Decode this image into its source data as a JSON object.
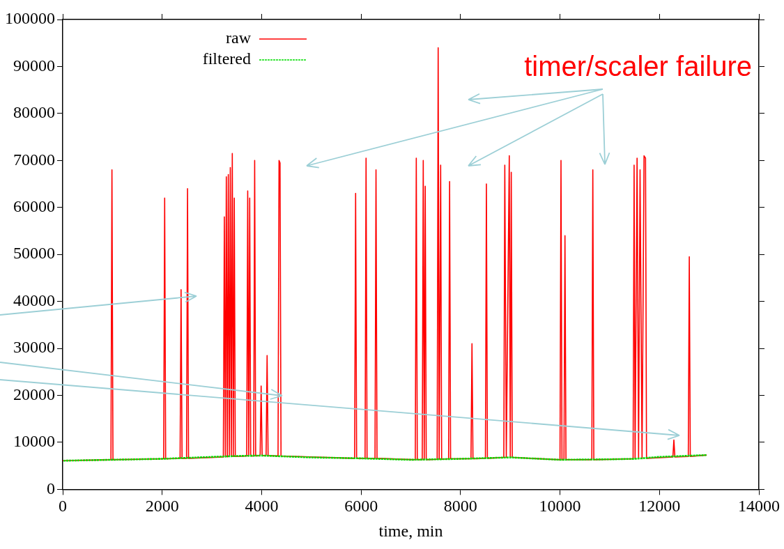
{
  "chart_data": {
    "type": "line",
    "xlabel": "time, min",
    "annotations": [
      "timer/scaler failure"
    ],
    "xlim": [
      0,
      14000
    ],
    "xticks": [
      0,
      2000,
      4000,
      6000,
      8000,
      10000,
      12000,
      14000
    ],
    "ylim": [
      0,
      100000
    ],
    "yticks": [
      0,
      10000,
      20000,
      30000,
      40000,
      50000,
      60000,
      70000,
      80000,
      90000,
      100000
    ],
    "grid": false,
    "legend": "top left",
    "marker": "none",
    "series": [
      {
        "name": "raw",
        "color": "#ff0000",
        "line_style": "solid",
        "x": [
          0,
          970,
          990,
          1010,
          2030,
          2050,
          2070,
          2360,
          2380,
          2400,
          2490,
          2510,
          2530,
          3230,
          3250,
          3270,
          3290,
          3310,
          3330,
          3350,
          3370,
          3390,
          3410,
          3430,
          3450,
          3470,
          3700,
          3720,
          3740,
          3760,
          3780,
          3800,
          3840,
          3860,
          3880,
          3970,
          3990,
          4010,
          4090,
          4110,
          4130,
          4330,
          4350,
          4370,
          4390,
          5870,
          5890,
          5910,
          6080,
          6100,
          6120,
          6280,
          6300,
          6320,
          7090,
          7110,
          7130,
          7230,
          7250,
          7270,
          7290,
          7310,
          7530,
          7550,
          7570,
          7600,
          7620,
          7760,
          7780,
          7800,
          8210,
          8230,
          8250,
          8500,
          8520,
          8540,
          8870,
          8890,
          8920,
          8980,
          9000,
          9020,
          9040,
          10000,
          10020,
          10040,
          10080,
          10100,
          10120,
          10640,
          10660,
          10680,
          11470,
          11490,
          11510,
          11550,
          11580,
          11610,
          11650,
          11690,
          11720,
          11740,
          12270,
          12290,
          12310,
          12580,
          12600,
          12620,
          12950
        ],
        "values": [
          6100,
          6300,
          68000,
          6300,
          6500,
          62000,
          6500,
          6600,
          42500,
          6600,
          6600,
          64000,
          6600,
          6900,
          58000,
          6900,
          66500,
          6900,
          67000,
          7000,
          68500,
          7000,
          71500,
          7000,
          62000,
          7000,
          7100,
          63500,
          7100,
          62000,
          7100,
          7100,
          7100,
          70000,
          7100,
          7200,
          22000,
          7200,
          7200,
          28500,
          7200,
          7100,
          70000,
          69500,
          7100,
          6600,
          63000,
          6600,
          6600,
          70500,
          6600,
          6600,
          68000,
          6600,
          6300,
          70500,
          6300,
          6300,
          70000,
          6300,
          64500,
          6300,
          6400,
          94000,
          6400,
          69000,
          6400,
          6500,
          65500,
          6500,
          6500,
          31000,
          6500,
          6600,
          65000,
          6600,
          6800,
          69000,
          6800,
          71000,
          6800,
          67500,
          6800,
          6300,
          70000,
          6300,
          6300,
          54000,
          6300,
          6300,
          68000,
          6300,
          6500,
          69000,
          6500,
          70500,
          6500,
          68000,
          6500,
          71000,
          70500,
          6600,
          6900,
          10500,
          6900,
          7000,
          49500,
          7000,
          7300
        ]
      },
      {
        "name": "filtered",
        "color": "#00dd00",
        "line_style": "dashed",
        "x": [
          0,
          1000,
          2000,
          3000,
          3500,
          4000,
          5000,
          6000,
          7000,
          7500,
          8000,
          9000,
          10000,
          11000,
          11500,
          12000,
          12950
        ],
        "values": [
          6100,
          6300,
          6500,
          6900,
          7100,
          7200,
          6800,
          6600,
          6300,
          6400,
          6500,
          6800,
          6300,
          6400,
          6500,
          6900,
          7300
        ]
      }
    ]
  }
}
